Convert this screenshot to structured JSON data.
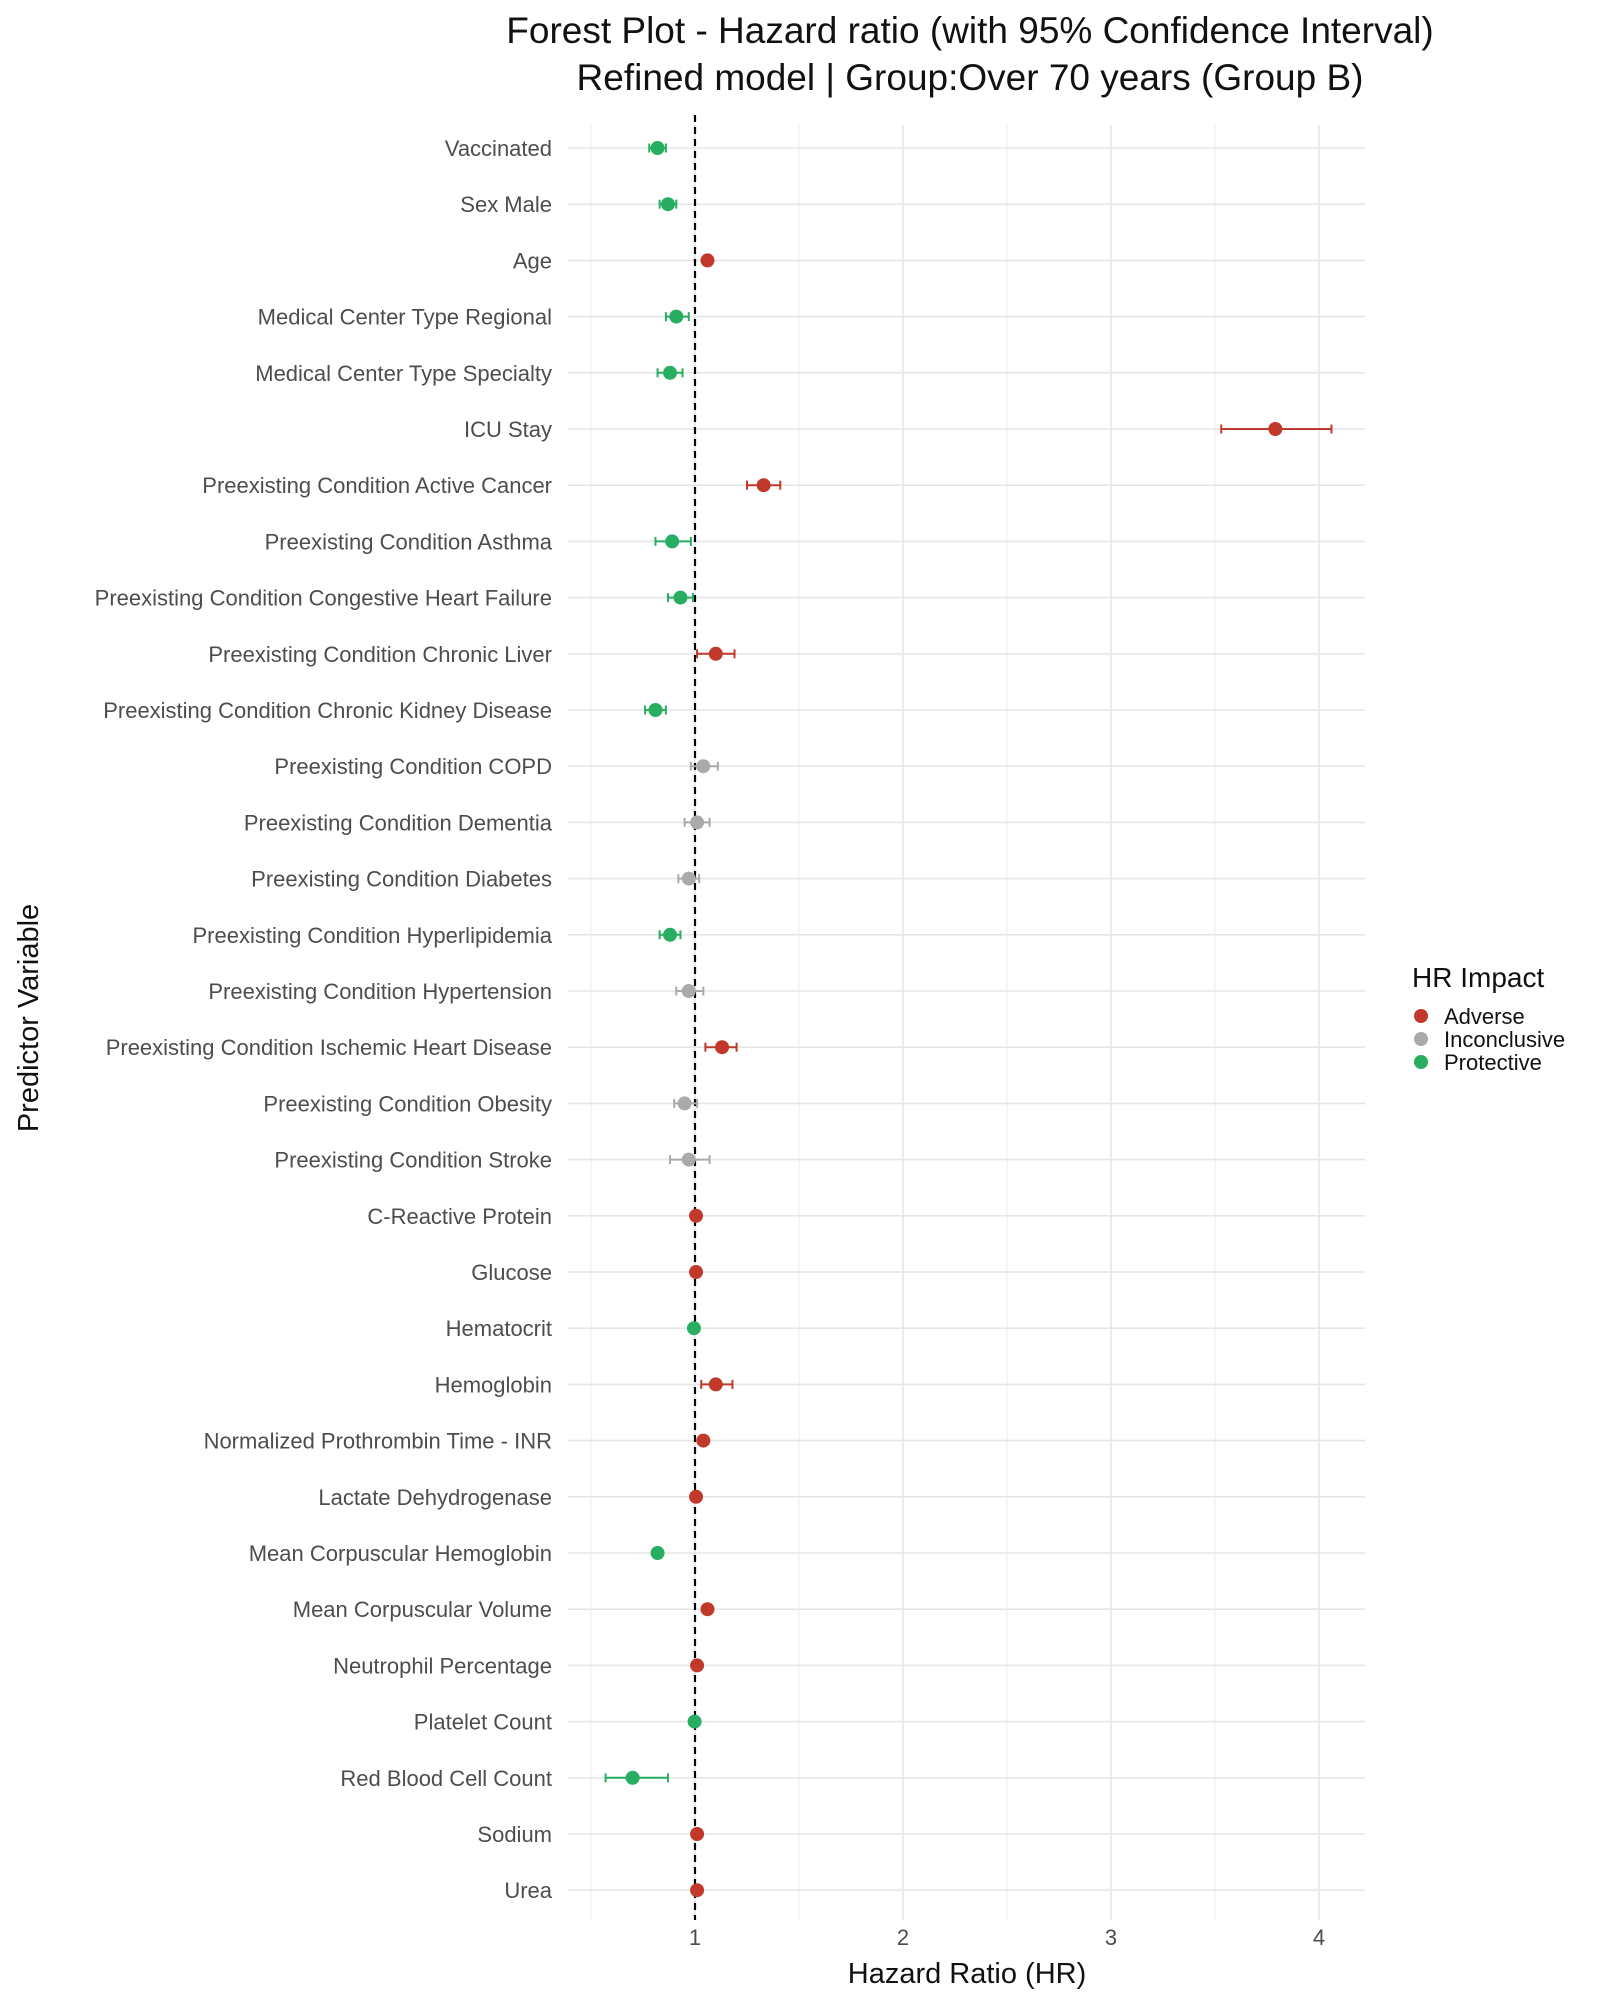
{
  "chart_data": {
    "type": "scatter",
    "subtype": "forest-plot",
    "title": "Forest Plot - Hazard ratio (with 95% Confidence Interval)",
    "subtitle": "Refined model | Group:Over 70 years (Group B)",
    "xlabel": "Hazard Ratio (HR)",
    "ylabel": "Predictor Variable",
    "xlim": [
      0.4,
      4.25
    ],
    "x_ticks": [
      "1",
      "2",
      "3",
      "4"
    ],
    "reference_line": 1,
    "grid": true,
    "legend": {
      "title": "HR Impact",
      "position": "right",
      "entries": [
        {
          "label": "Adverse",
          "color": "#c0392b"
        },
        {
          "label": "Inconclusive",
          "color": "#aaaaaa"
        },
        {
          "label": "Protective",
          "color": "#27ae60"
        }
      ]
    },
    "rows": [
      {
        "label": "Vaccinated",
        "hr": 0.82,
        "lower": 0.78,
        "upper": 0.86,
        "impact": "Protective"
      },
      {
        "label": "Sex Male",
        "hr": 0.87,
        "lower": 0.83,
        "upper": 0.91,
        "impact": "Protective"
      },
      {
        "label": "Age",
        "hr": 1.06,
        "lower": 1.05,
        "upper": 1.07,
        "impact": "Adverse"
      },
      {
        "label": "Medical Center Type Regional",
        "hr": 0.91,
        "lower": 0.86,
        "upper": 0.97,
        "impact": "Protective"
      },
      {
        "label": "Medical Center Type Specialty",
        "hr": 0.88,
        "lower": 0.82,
        "upper": 0.94,
        "impact": "Protective"
      },
      {
        "label": "ICU Stay",
        "hr": 3.79,
        "lower": 3.53,
        "upper": 4.06,
        "impact": "Adverse"
      },
      {
        "label": "Preexisting Condition Active Cancer",
        "hr": 1.33,
        "lower": 1.25,
        "upper": 1.41,
        "impact": "Adverse"
      },
      {
        "label": "Preexisting Condition Asthma",
        "hr": 0.89,
        "lower": 0.81,
        "upper": 0.98,
        "impact": "Protective"
      },
      {
        "label": "Preexisting Condition Congestive Heart Failure",
        "hr": 0.93,
        "lower": 0.87,
        "upper": 0.99,
        "impact": "Protective"
      },
      {
        "label": "Preexisting Condition Chronic Liver",
        "hr": 1.1,
        "lower": 1.01,
        "upper": 1.19,
        "impact": "Adverse"
      },
      {
        "label": "Preexisting Condition Chronic Kidney Disease",
        "hr": 0.81,
        "lower": 0.76,
        "upper": 0.86,
        "impact": "Protective"
      },
      {
        "label": "Preexisting Condition COPD",
        "hr": 1.04,
        "lower": 0.98,
        "upper": 1.11,
        "impact": "Inconclusive"
      },
      {
        "label": "Preexisting Condition Dementia",
        "hr": 1.01,
        "lower": 0.95,
        "upper": 1.07,
        "impact": "Inconclusive"
      },
      {
        "label": "Preexisting Condition Diabetes",
        "hr": 0.97,
        "lower": 0.92,
        "upper": 1.02,
        "impact": "Inconclusive"
      },
      {
        "label": "Preexisting Condition Hyperlipidemia",
        "hr": 0.88,
        "lower": 0.83,
        "upper": 0.93,
        "impact": "Protective"
      },
      {
        "label": "Preexisting Condition Hypertension",
        "hr": 0.97,
        "lower": 0.91,
        "upper": 1.04,
        "impact": "Inconclusive"
      },
      {
        "label": "Preexisting Condition Ischemic Heart Disease",
        "hr": 1.13,
        "lower": 1.05,
        "upper": 1.2,
        "impact": "Adverse"
      },
      {
        "label": "Preexisting Condition Obesity",
        "hr": 0.95,
        "lower": 0.9,
        "upper": 1.01,
        "impact": "Inconclusive"
      },
      {
        "label": "Preexisting Condition Stroke",
        "hr": 0.97,
        "lower": 0.88,
        "upper": 1.07,
        "impact": "Inconclusive"
      },
      {
        "label": "C-Reactive Protein",
        "hr": 1.005,
        "lower": 1.0,
        "upper": 1.01,
        "impact": "Adverse"
      },
      {
        "label": "Glucose",
        "hr": 1.005,
        "lower": 1.0,
        "upper": 1.01,
        "impact": "Adverse"
      },
      {
        "label": "Hematocrit",
        "hr": 0.995,
        "lower": 0.99,
        "upper": 0.999,
        "impact": "Protective"
      },
      {
        "label": "Hemoglobin",
        "hr": 1.1,
        "lower": 1.03,
        "upper": 1.18,
        "impact": "Adverse"
      },
      {
        "label": "Normalized Prothrombin Time - INR",
        "hr": 1.04,
        "lower": 1.02,
        "upper": 1.06,
        "impact": "Adverse"
      },
      {
        "label": "Lactate Dehydrogenase",
        "hr": 1.005,
        "lower": 1.0,
        "upper": 1.01,
        "impact": "Adverse"
      },
      {
        "label": "Mean Corpuscular Hemoglobin",
        "hr": 0.82,
        "lower": 0.81,
        "upper": 0.83,
        "impact": "Protective"
      },
      {
        "label": "Mean Corpuscular Volume",
        "hr": 1.06,
        "lower": 1.05,
        "upper": 1.07,
        "impact": "Adverse"
      },
      {
        "label": "Neutrophil Percentage",
        "hr": 1.01,
        "lower": 1.0,
        "upper": 1.02,
        "impact": "Adverse"
      },
      {
        "label": "Platelet Count",
        "hr": 0.998,
        "lower": 0.997,
        "upper": 0.999,
        "impact": "Protective"
      },
      {
        "label": "Red Blood Cell Count",
        "hr": 0.7,
        "lower": 0.57,
        "upper": 0.87,
        "impact": "Protective"
      },
      {
        "label": "Sodium",
        "hr": 1.01,
        "lower": 1.0,
        "upper": 1.02,
        "impact": "Adverse"
      },
      {
        "label": "Urea",
        "hr": 1.01,
        "lower": 1.0,
        "upper": 1.02,
        "impact": "Adverse"
      }
    ]
  }
}
